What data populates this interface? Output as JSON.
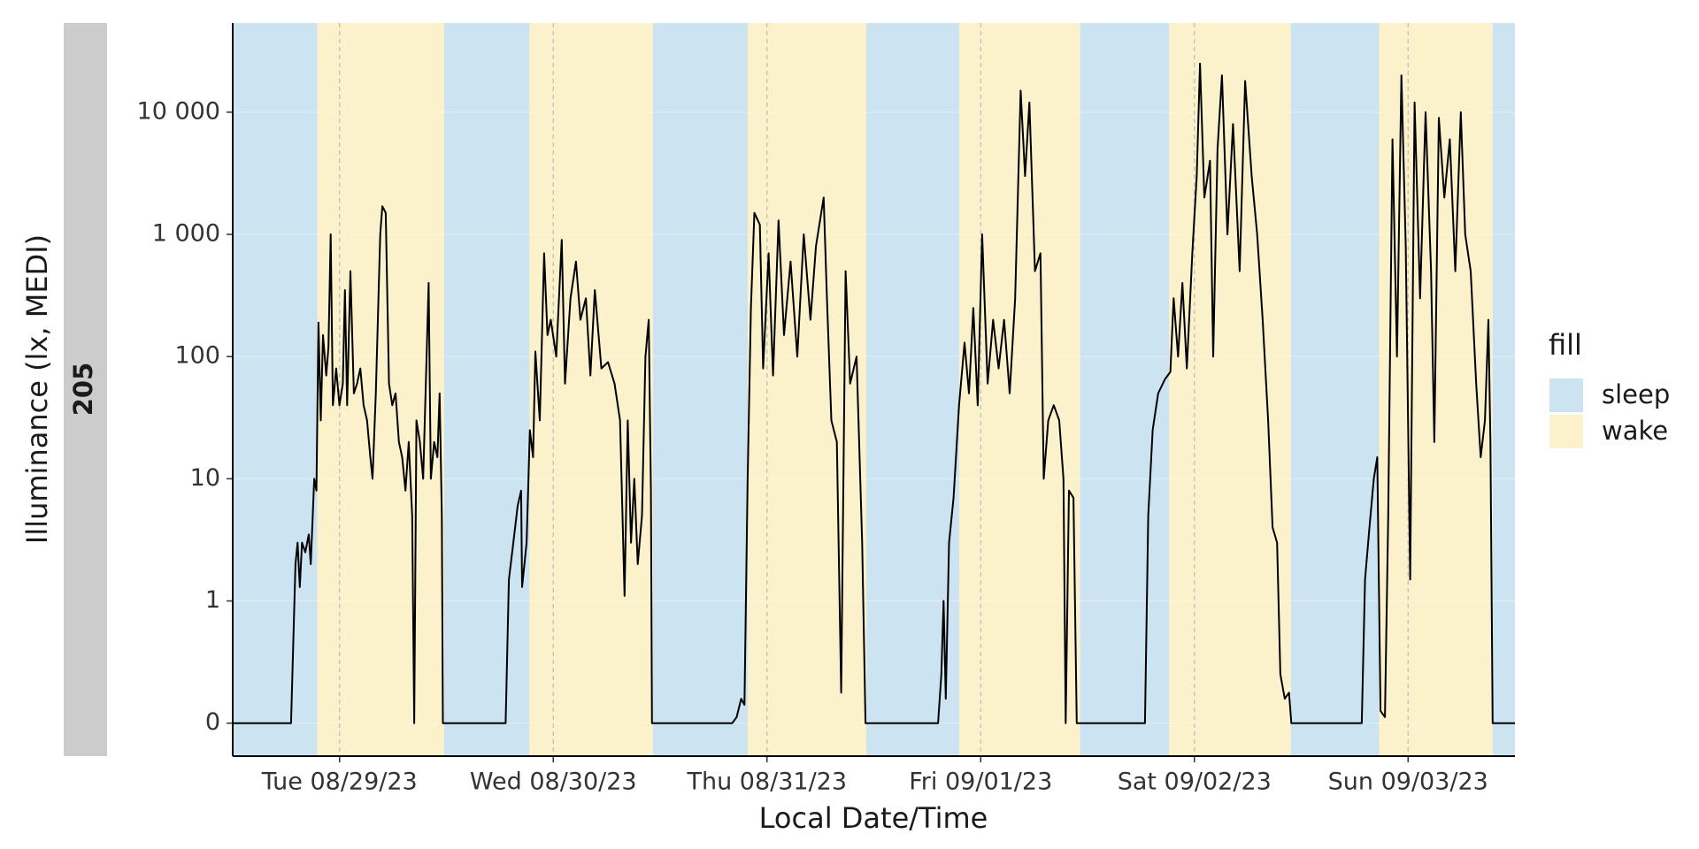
{
  "chart_data": {
    "type": "line",
    "strip_label": "205",
    "y_label": "Illuminance (lx, MEDI)",
    "x_label": "Local Date/Time",
    "yscale": "symlog",
    "linthresh": 1,
    "ylim": [
      -0.27,
      53700
    ],
    "yticks": [
      0,
      1,
      10,
      100,
      {
        "value": 1000,
        "label": "1 000"
      },
      {
        "value": 10000,
        "label": "10 000"
      }
    ],
    "xlim": [
      "2023-08-29T00:00",
      "2023-09-04T00:00"
    ],
    "xticks": [
      {
        "value": "2023-08-29T12:00",
        "label": "Tue 08/29/23"
      },
      {
        "value": "2023-08-30T12:00",
        "label": "Wed 08/30/23"
      },
      {
        "value": "2023-08-31T12:00",
        "label": "Thu 08/31/23"
      },
      {
        "value": "2023-09-01T12:00",
        "label": "Fri 09/01/23"
      },
      {
        "value": "2023-09-02T12:00",
        "label": "Sat 09/02/23"
      },
      {
        "value": "2023-09-03T12:00",
        "label": "Sun 09/03/23"
      }
    ],
    "grid": true,
    "color": "#000000",
    "bands": {
      "title": "fill",
      "states": [
        {
          "name": "sleep",
          "color": "#cce3f2"
        },
        {
          "name": "wake",
          "color": "#fbf1cb"
        }
      ],
      "intervals": [
        {
          "state": "sleep",
          "start": "2023-08-29T00:00",
          "end": "2023-08-29T09:30"
        },
        {
          "state": "wake",
          "start": "2023-08-29T09:30",
          "end": "2023-08-29T23:45"
        },
        {
          "state": "sleep",
          "start": "2023-08-29T23:45",
          "end": "2023-08-30T09:20"
        },
        {
          "state": "wake",
          "start": "2023-08-30T09:20",
          "end": "2023-08-30T23:12"
        },
        {
          "state": "sleep",
          "start": "2023-08-30T23:12",
          "end": "2023-08-31T09:50"
        },
        {
          "state": "wake",
          "start": "2023-08-31T09:50",
          "end": "2023-08-31T23:10"
        },
        {
          "state": "sleep",
          "start": "2023-08-31T23:10",
          "end": "2023-09-01T09:35"
        },
        {
          "state": "wake",
          "start": "2023-09-01T09:35",
          "end": "2023-09-01T23:10"
        },
        {
          "state": "sleep",
          "start": "2023-09-01T23:10",
          "end": "2023-09-02T09:10"
        },
        {
          "state": "wake",
          "start": "2023-09-02T09:10",
          "end": "2023-09-02T22:50"
        },
        {
          "state": "sleep",
          "start": "2023-09-02T22:50",
          "end": "2023-09-03T08:45"
        },
        {
          "state": "wake",
          "start": "2023-09-03T08:45",
          "end": "2023-09-03T21:30"
        },
        {
          "state": "sleep",
          "start": "2023-09-03T21:30",
          "end": "2023-09-04T00:00"
        }
      ]
    },
    "x": [
      "2023-08-29T00:00",
      "2023-08-29T06:33",
      "2023-08-29T07:03",
      "2023-08-29T07:17",
      "2023-08-29T07:32",
      "2023-08-29T07:47",
      "2023-08-29T08:09",
      "2023-08-29T08:32",
      "2023-08-29T08:46",
      "2023-08-29T09:09",
      "2023-08-29T09:24",
      "2023-08-29T09:38",
      "2023-08-29T09:53",
      "2023-08-29T10:08",
      "2023-08-29T10:30",
      "2023-08-29T10:45",
      "2023-08-29T11:00",
      "2023-08-29T11:15",
      "2023-08-29T11:37",
      "2023-08-29T11:59",
      "2023-08-29T12:22",
      "2023-08-29T12:36",
      "2023-08-29T12:51",
      "2023-08-29T13:13",
      "2023-08-29T13:36",
      "2023-08-29T13:58",
      "2023-08-29T14:20",
      "2023-08-29T14:42",
      "2023-08-29T15:05",
      "2023-08-29T15:27",
      "2023-08-29T15:42",
      "2023-08-29T16:04",
      "2023-08-29T16:34",
      "2023-08-29T16:48",
      "2023-08-29T17:11",
      "2023-08-29T17:33",
      "2023-08-29T17:55",
      "2023-08-29T18:17",
      "2023-08-29T18:40",
      "2023-08-29T19:02",
      "2023-08-29T19:24",
      "2023-08-29T19:46",
      "2023-08-29T20:09",
      "2023-08-29T20:23",
      "2023-08-29T20:38",
      "2023-08-29T21:01",
      "2023-08-29T21:23",
      "2023-08-29T22:00",
      "2023-08-29T22:15",
      "2023-08-29T22:37",
      "2023-08-29T22:59",
      "2023-08-29T23:14",
      "2023-08-29T23:29",
      "2023-08-29T23:36",
      "2023-08-30T06:39",
      "2023-08-30T07:01",
      "2023-08-30T07:31",
      "2023-08-30T08:00",
      "2023-08-30T08:23",
      "2023-08-30T08:30",
      "2023-08-30T09:00",
      "2023-08-30T09:22",
      "2023-08-30T09:44",
      "2023-08-30T09:59",
      "2023-08-30T10:29",
      "2023-08-30T10:58",
      "2023-08-30T11:21",
      "2023-08-30T11:43",
      "2023-08-30T12:20",
      "2023-08-30T12:57",
      "2023-08-30T13:19",
      "2023-08-30T13:56",
      "2023-08-30T14:33",
      "2023-08-30T15:03",
      "2023-08-30T15:40",
      "2023-08-30T16:10",
      "2023-08-30T16:40",
      "2023-08-30T17:24",
      "2023-08-30T18:09",
      "2023-08-30T18:53",
      "2023-08-30T19:30",
      "2023-08-30T20:00",
      "2023-08-30T20:22",
      "2023-08-30T20:44",
      "2023-08-30T21:06",
      "2023-08-30T21:29",
      "2023-08-30T21:58",
      "2023-08-30T22:21",
      "2023-08-30T22:43",
      "2023-08-30T22:58",
      "2023-08-30T23:05",
      "2023-08-31T08:06",
      "2023-08-31T08:36",
      "2023-08-31T09:06",
      "2023-08-31T09:28",
      "2023-08-31T09:50",
      "2023-08-31T10:12",
      "2023-08-31T10:35",
      "2023-08-31T11:12",
      "2023-08-31T11:34",
      "2023-08-31T12:11",
      "2023-08-31T12:41",
      "2023-08-31T13:18",
      "2023-08-31T13:55",
      "2023-08-31T14:39",
      "2023-08-31T15:24",
      "2023-08-31T16:08",
      "2023-08-31T16:53",
      "2023-08-31T17:30",
      "2023-08-31T18:22",
      "2023-08-31T18:44",
      "2023-08-31T19:14",
      "2023-08-31T19:51",
      "2023-08-31T20:20",
      "2023-08-31T20:50",
      "2023-08-31T21:20",
      "2023-08-31T22:04",
      "2023-08-31T22:41",
      "2023-08-31T23:04",
      "2023-09-01T07:13",
      "2023-09-01T07:35",
      "2023-09-01T07:50",
      "2023-09-01T08:05",
      "2023-09-01T08:27",
      "2023-09-01T08:57",
      "2023-09-01T09:34",
      "2023-09-01T10:11",
      "2023-09-01T10:41",
      "2023-09-01T11:10",
      "2023-09-01T11:40",
      "2023-09-01T12:10",
      "2023-09-01T12:47",
      "2023-09-01T13:24",
      "2023-09-01T14:01",
      "2023-09-01T14:38",
      "2023-09-01T15:15",
      "2023-09-01T15:52",
      "2023-09-01T16:29",
      "2023-09-01T16:59",
      "2023-09-01T17:28",
      "2023-09-01T18:06",
      "2023-09-01T18:43",
      "2023-09-01T19:05",
      "2023-09-01T19:35",
      "2023-09-01T20:12",
      "2023-09-01T20:49",
      "2023-09-01T21:18",
      "2023-09-01T21:33",
      "2023-09-01T21:55",
      "2023-09-01T22:25",
      "2023-09-01T22:47",
      "2023-09-02T06:27",
      "2023-09-02T06:49",
      "2023-09-02T07:19",
      "2023-09-02T07:56",
      "2023-09-02T08:41",
      "2023-09-02T09:18",
      "2023-09-02T09:40",
      "2023-09-02T10:10",
      "2023-09-02T10:39",
      "2023-09-02T11:09",
      "2023-09-02T11:46",
      "2023-09-02T12:16",
      "2023-09-02T12:38",
      "2023-09-02T13:07",
      "2023-09-02T13:45",
      "2023-09-02T14:07",
      "2023-09-02T14:36",
      "2023-09-02T15:06",
      "2023-09-02T15:43",
      "2023-09-02T16:20",
      "2023-09-02T17:05",
      "2023-09-02T17:42",
      "2023-09-02T18:26",
      "2023-09-02T19:03",
      "2023-09-02T19:40",
      "2023-09-02T20:17",
      "2023-09-02T20:47",
      "2023-09-02T21:17",
      "2023-09-02T21:39",
      "2023-09-02T22:09",
      "2023-09-02T22:38",
      "2023-09-02T22:53",
      "2023-09-03T06:48",
      "2023-09-03T07:10",
      "2023-09-03T07:40",
      "2023-09-03T08:09",
      "2023-09-03T08:32",
      "2023-09-03T08:54",
      "2023-09-03T09:24",
      "2023-09-03T09:46",
      "2023-09-03T10:15",
      "2023-09-03T10:45",
      "2023-09-03T11:15",
      "2023-09-03T11:44",
      "2023-09-03T12:14",
      "2023-09-03T12:44",
      "2023-09-03T13:21",
      "2023-09-03T13:58",
      "2023-09-03T14:35",
      "2023-09-03T14:57",
      "2023-09-03T15:27",
      "2023-09-03T16:04",
      "2023-09-03T16:41",
      "2023-09-03T17:18",
      "2023-09-03T17:55",
      "2023-09-03T18:25",
      "2023-09-03T19:02",
      "2023-09-03T19:39",
      "2023-09-03T20:09",
      "2023-09-03T20:38",
      "2023-09-03T21:01",
      "2023-09-03T21:15",
      "2023-09-03T21:30",
      "2023-09-04T00:00"
    ],
    "values": [
      0,
      0,
      2,
      3,
      1.3,
      3,
      2.5,
      3.5,
      2,
      10,
      8,
      190,
      30,
      150,
      70,
      120,
      1000,
      40,
      80,
      40,
      60,
      350,
      40,
      500,
      50,
      60,
      80,
      40,
      30,
      15,
      10,
      50,
      1000,
      1700,
      1500,
      60,
      40,
      50,
      20,
      15,
      8,
      20,
      5,
      0,
      30,
      20,
      10,
      400,
      10,
      20,
      15,
      50,
      5,
      0,
      0,
      1.5,
      3,
      6,
      8,
      1.3,
      3,
      25,
      15,
      110,
      30,
      700,
      150,
      200,
      100,
      900,
      60,
      300,
      600,
      200,
      300,
      70,
      350,
      80,
      90,
      60,
      30,
      1.1,
      30,
      3,
      10,
      2,
      5,
      100,
      200,
      8,
      0,
      0,
      0.05,
      0.2,
      0.15,
      10,
      250,
      1500,
      1200,
      80,
      700,
      70,
      1300,
      150,
      600,
      100,
      1000,
      200,
      800,
      2000,
      300,
      30,
      20,
      0.25,
      500,
      60,
      100,
      3,
      0,
      0,
      0.4,
      1,
      0.2,
      3,
      7,
      40,
      130,
      50,
      250,
      40,
      1000,
      60,
      200,
      80,
      200,
      50,
      300,
      15000,
      3000,
      12000,
      500,
      700,
      10,
      30,
      40,
      30,
      10,
      0,
      8,
      7,
      0,
      0,
      5,
      25,
      50,
      65,
      75,
      300,
      100,
      400,
      80,
      700,
      3000,
      25000,
      2000,
      4000,
      100,
      5000,
      20000,
      1000,
      8000,
      500,
      18000,
      3000,
      1000,
      200,
      30,
      4,
      3,
      0.4,
      0.2,
      0.25,
      0,
      0,
      1.5,
      4,
      10,
      15,
      0.1,
      0.05,
      5,
      6000,
      100,
      20000,
      800,
      1.5,
      12000,
      300,
      10000,
      500,
      20,
      9000,
      2000,
      6000,
      500,
      10000,
      1000,
      500,
      60,
      15,
      30,
      200,
      20,
      0,
      0
    ]
  }
}
